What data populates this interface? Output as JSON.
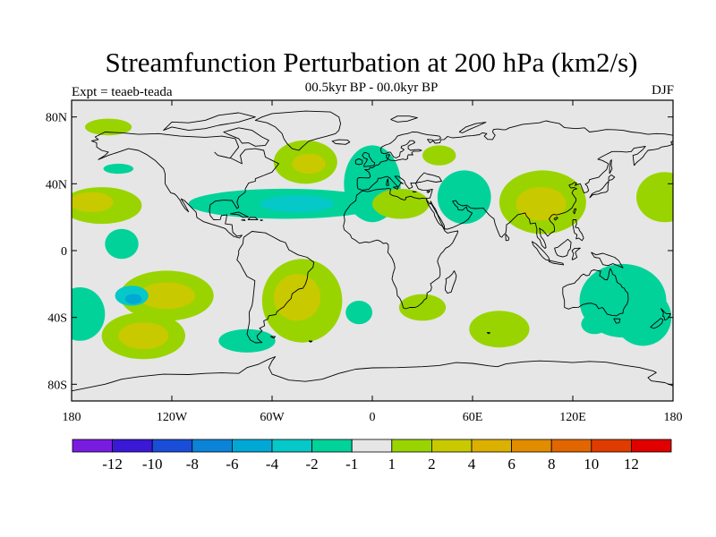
{
  "title": "Streamfunction Perturbation at 200 hPa (km2/s)",
  "subtitle_left": "Expt = teaeb-teada",
  "subtitle_center": "00.5kyr BP - 00.0kyr BP",
  "subtitle_right": "DJF",
  "map_data": {
    "projection": "cylindrical equidistant",
    "lon_range": [
      -180,
      180
    ],
    "lat_range": [
      -90,
      90
    ],
    "x_ticks": [
      {
        "lon": -180,
        "label": "180"
      },
      {
        "lon": -120,
        "label": "120W"
      },
      {
        "lon": -60,
        "label": "60W"
      },
      {
        "lon": 0,
        "label": "0"
      },
      {
        "lon": 60,
        "label": "60E"
      },
      {
        "lon": 120,
        "label": "120E"
      },
      {
        "lon": 180,
        "label": "180"
      }
    ],
    "y_ticks": [
      {
        "lat": 80,
        "label": "80N"
      },
      {
        "lat": 40,
        "label": "40N"
      },
      {
        "lat": 0,
        "label": "0"
      },
      {
        "lat": -40,
        "label": "40S"
      },
      {
        "lat": -80,
        "label": "80S"
      }
    ],
    "background_color": "#e6e6e6",
    "anomalies": [
      {
        "lon": -158,
        "lat": 74,
        "rx": 14,
        "ry": 5,
        "level": 1
      },
      {
        "lon": -152,
        "lat": 49,
        "rx": 9,
        "ry": 3,
        "level": -1
      },
      {
        "lon": -162,
        "lat": 27,
        "rx": 24,
        "ry": 11,
        "level": 1
      },
      {
        "lon": -168,
        "lat": 29,
        "rx": 13,
        "ry": 6,
        "level": 2
      },
      {
        "lon": -40,
        "lat": 53,
        "rx": 19,
        "ry": 13,
        "level": 1
      },
      {
        "lon": -38,
        "lat": 52,
        "rx": 10,
        "ry": 6,
        "level": 2
      },
      {
        "lon": -52,
        "lat": 28,
        "rx": 58,
        "ry": 9,
        "level": -1
      },
      {
        "lon": -45,
        "lat": 28,
        "rx": 22,
        "ry": 5,
        "level": -2
      },
      {
        "lon": 0,
        "lat": 40,
        "rx": 17,
        "ry": 23,
        "level": -1
      },
      {
        "lon": 40,
        "lat": 57,
        "rx": 10,
        "ry": 6,
        "level": 1
      },
      {
        "lon": 17,
        "lat": 28,
        "rx": 17,
        "ry": 9,
        "level": 1
      },
      {
        "lon": 55,
        "lat": 32,
        "rx": 16,
        "ry": 16,
        "level": -1
      },
      {
        "lon": 102,
        "lat": 29,
        "rx": 26,
        "ry": 19,
        "level": 1
      },
      {
        "lon": 101,
        "lat": 28,
        "rx": 15,
        "ry": 10,
        "level": 2
      },
      {
        "lon": 175,
        "lat": 32,
        "rx": 17,
        "ry": 15,
        "level": 1
      },
      {
        "lon": -150,
        "lat": 4,
        "rx": 10,
        "ry": 9,
        "level": -1
      },
      {
        "lon": -123,
        "lat": -27,
        "rx": 28,
        "ry": 15,
        "level": 1
      },
      {
        "lon": -123,
        "lat": -27,
        "rx": 17,
        "ry": 8,
        "level": 2
      },
      {
        "lon": -144,
        "lat": -27,
        "rx": 10,
        "ry": 6,
        "level": -2
      },
      {
        "lon": -143,
        "lat": -29,
        "rx": 5,
        "ry": 3,
        "level": -4
      },
      {
        "lon": -175,
        "lat": -38,
        "rx": 15,
        "ry": 16,
        "level": -1
      },
      {
        "lon": -137,
        "lat": -51,
        "rx": 25,
        "ry": 14,
        "level": 1
      },
      {
        "lon": -137,
        "lat": -51,
        "rx": 15,
        "ry": 8,
        "level": 2
      },
      {
        "lon": -75,
        "lat": -54,
        "rx": 17,
        "ry": 7,
        "level": -1
      },
      {
        "lon": -42,
        "lat": -30,
        "rx": 24,
        "ry": 25,
        "level": 1
      },
      {
        "lon": -45,
        "lat": -28,
        "rx": 14,
        "ry": 14,
        "level": 2
      },
      {
        "lon": -8,
        "lat": -37,
        "rx": 8,
        "ry": 7,
        "level": -1
      },
      {
        "lon": 30,
        "lat": -34,
        "rx": 14,
        "ry": 8,
        "level": 1
      },
      {
        "lon": 76,
        "lat": -47,
        "rx": 18,
        "ry": 11,
        "level": 1
      },
      {
        "lon": 133,
        "lat": -44,
        "rx": 8,
        "ry": 6,
        "level": -1
      },
      {
        "lon": 150,
        "lat": -30,
        "rx": 26,
        "ry": 22,
        "level": -1
      },
      {
        "lon": 162,
        "lat": -40,
        "rx": 17,
        "ry": 17,
        "level": -1
      }
    ]
  },
  "colorbar": {
    "colors": [
      "#7a1be0",
      "#3a18d6",
      "#1a4ed8",
      "#0b84d8",
      "#00a8d6",
      "#06c8c8",
      "#00d29a",
      "#e6e6e6",
      "#9ad400",
      "#c9c900",
      "#dcb000",
      "#e28c00",
      "#e26600",
      "#e03c00",
      "#e00000"
    ],
    "labels": [
      "-12",
      "-10",
      "-8",
      "-6",
      "-4",
      "-2",
      "-1",
      "1",
      "2",
      "4",
      "6",
      "8",
      "10",
      "12"
    ]
  }
}
